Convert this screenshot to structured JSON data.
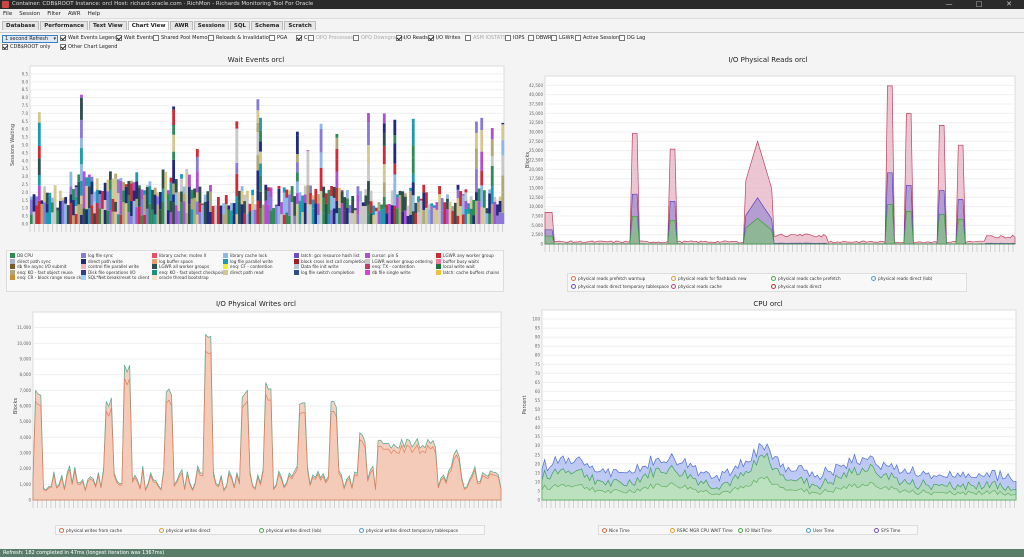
{
  "window": {
    "title": "Container: CDB$ROOT  Instance: orcl  Host: richard.oracle.com  ·  RichMon - Richards Monitoring Tool For Oracle",
    "buttons": [
      "—",
      "□",
      "✕"
    ]
  },
  "menu": [
    "File",
    "Session",
    "Filter",
    "AWR",
    "Help"
  ],
  "tabs": [
    {
      "label": "Database",
      "active": false
    },
    {
      "label": "Performance",
      "active": false
    },
    {
      "label": "Text View",
      "active": false
    },
    {
      "label": "Chart View",
      "active": true
    },
    {
      "label": "AWR",
      "active": false
    },
    {
      "label": "Sessions",
      "active": false
    },
    {
      "label": "SQL",
      "active": false
    },
    {
      "label": "Schema",
      "active": false
    },
    {
      "label": "Scratch",
      "active": false
    }
  ],
  "controls": {
    "refresh": "1 second Refresh",
    "left_checks": [
      {
        "label": "Wait Events Legend",
        "checked": true
      },
      {
        "label": "CDB$ROOT only",
        "checked": true
      },
      {
        "label": "Other Chart Legend",
        "checked": true
      }
    ],
    "chart_checks": [
      {
        "label": "Wait Events",
        "checked": true,
        "disabled": false
      },
      {
        "label": "Shared Pool Memory",
        "checked": false,
        "disabled": false
      },
      {
        "label": "Reloads & Invalidations",
        "checked": false,
        "disabled": false
      },
      {
        "label": "PGA",
        "checked": false,
        "disabled": false
      },
      {
        "label": "CPU",
        "checked": true,
        "disabled": false
      },
      {
        "label": "OPQ Processes",
        "checked": false,
        "disabled": true
      },
      {
        "label": "OPQ Downgrades",
        "checked": false,
        "disabled": true
      },
      {
        "label": "I/O Reads",
        "checked": true,
        "disabled": false
      },
      {
        "label": "I/O Writes",
        "checked": true,
        "disabled": false
      },
      {
        "label": "ASM IOSTATS",
        "checked": false,
        "disabled": true
      },
      {
        "label": "IOPS",
        "checked": false,
        "disabled": false
      },
      {
        "label": "DBWR",
        "checked": false,
        "disabled": false
      },
      {
        "label": "LGWR",
        "checked": false,
        "disabled": false
      },
      {
        "label": "Active Sessions",
        "checked": false,
        "disabled": false
      },
      {
        "label": "DG Lag",
        "checked": false,
        "disabled": false
      }
    ]
  },
  "status": "Refresh: 182 completed in 47ms (longest iteration was 1367ms)",
  "charts": {
    "wait": {
      "title": "Wait Events orcl",
      "ylabel": "Sessions Waiting",
      "ylim": [
        0,
        10
      ],
      "yticks": [
        "0.0",
        "0.5",
        "1.0",
        "1.5",
        "2.0",
        "2.5",
        "3.0",
        "3.5",
        "4.0",
        "4.5",
        "5.0",
        "5.5",
        "6.0",
        "6.5",
        "7.0",
        "7.5",
        "8.0",
        "8.5",
        "9.0",
        "9.5"
      ],
      "legend": [
        {
          "label": "DB CPU",
          "color": "#2e8b57"
        },
        {
          "label": "log file sync",
          "color": "#8a7ad8"
        },
        {
          "label": "library cache: mutex X",
          "color": "#e0526b"
        },
        {
          "label": "library cache lock",
          "color": "#8fb8e8"
        },
        {
          "label": "latch: gcs resource hash list",
          "color": "#6d4fc4"
        },
        {
          "label": "cursor: pin S",
          "color": "#b04fd4"
        },
        {
          "label": "LGWR any worker group",
          "color": "#d02a36"
        },
        {
          "label": "direct path sync",
          "color": "#a8b4c4"
        },
        {
          "label": "direct path write",
          "color": "#222a7a"
        },
        {
          "label": "log buffer space",
          "color": "#e8a070"
        },
        {
          "label": "log file parallel write",
          "color": "#1e9ab0"
        },
        {
          "label": "block cross inst call completion",
          "color": "#9a1f2a"
        },
        {
          "label": "LGWR worker group ordering",
          "color": "#c8c8c8"
        },
        {
          "label": "buffer busy waits",
          "color": "#f07a9a"
        },
        {
          "label": "db file async I/O submit",
          "color": "#7a5a2a"
        },
        {
          "label": "control file parallel write",
          "color": "#f2b0c0"
        },
        {
          "label": "LGWR all worker groups",
          "color": "#2f4f4f"
        },
        {
          "label": "enq: CF - contention",
          "color": "#f0f03a"
        },
        {
          "label": "Data file init write",
          "color": "#b8c8d8"
        },
        {
          "label": "enq: TX - contention",
          "color": "#c03a6a"
        },
        {
          "label": "local write wait",
          "color": "#1f6f3f"
        },
        {
          "label": "enq: KO - fast object reuse",
          "color": "#b0a878"
        },
        {
          "label": "Disk file operations I/O",
          "color": "#3a3a8a"
        },
        {
          "label": "enq: KO - fast object checkpoint",
          "color": "#1f8f7f"
        },
        {
          "label": "direct path read",
          "color": "#d4c890"
        },
        {
          "label": "log file switch completion",
          "color": "#30508a"
        },
        {
          "label": "db file single write",
          "color": "#e040e0"
        },
        {
          "label": "latch: cache buffers chains",
          "color": "#f0c040"
        },
        {
          "label": "enq: CR - block range reuse ckpt",
          "color": "#c89030"
        },
        {
          "label": "SQL*Net break/reset to client",
          "color": "#a0d0f8"
        },
        {
          "label": "oracle thread bootstrap",
          "color": "#f4e0c8"
        }
      ]
    },
    "reads": {
      "title": "I/O Physical Reads orcl",
      "ylabel": "Blocks",
      "ylim": [
        0,
        42500
      ],
      "yticks": [
        "0",
        "2,500",
        "5,000",
        "7,500",
        "10,000",
        "12,500",
        "15,000",
        "17,500",
        "20,000",
        "22,500",
        "25,000",
        "27,500",
        "30,000",
        "32,500",
        "35,000",
        "37,500",
        "40,000",
        "42,500"
      ],
      "legend": [
        {
          "label": "physical reads prefetch warmup",
          "color": "#e07040"
        },
        {
          "label": "physical reads for flashback new",
          "color": "#e0a030"
        },
        {
          "label": "physical reads cache prefetch",
          "color": "#50a850"
        },
        {
          "label": "physical reads direct (lob)",
          "color": "#50a0d0"
        },
        {
          "label": "physical reads direct temporary tablespace",
          "color": "#7050c0"
        },
        {
          "label": "physical reads cache",
          "color": "#c04090"
        },
        {
          "label": "physical reads direct",
          "color": "#c03040"
        }
      ]
    },
    "writes": {
      "title": "I/O Physical Writes orcl",
      "ylabel": "Blocks",
      "ylim": [
        0,
        11000
      ],
      "yticks": [
        "0",
        "1,000",
        "2,000",
        "3,000",
        "4,000",
        "5,000",
        "6,000",
        "7,000",
        "8,000",
        "9,000",
        "10,000",
        "11,000"
      ],
      "legend": [
        {
          "label": "physical writes from cache",
          "color": "#e07040"
        },
        {
          "label": "physical writes direct",
          "color": "#e0a030"
        },
        {
          "label": "physical writes direct (lob)",
          "color": "#50a850"
        },
        {
          "label": "physical writes direct temporary tablespace",
          "color": "#50a0d0"
        }
      ]
    },
    "cpu": {
      "title": "CPU orcl",
      "ylabel": "Percent",
      "ylim": [
        0,
        100
      ],
      "yticks": [
        "0",
        "5",
        "10",
        "15",
        "20",
        "25",
        "30",
        "35",
        "40",
        "45",
        "50",
        "55",
        "60",
        "65",
        "70",
        "75",
        "80",
        "85",
        "90",
        "95",
        "100"
      ],
      "legend": [
        {
          "label": "Nice Time",
          "color": "#e07040"
        },
        {
          "label": "RSRC MGR CPU WAIT Time",
          "color": "#e0a030"
        },
        {
          "label": "IO Wait Time",
          "color": "#50a850"
        },
        {
          "label": "User Time",
          "color": "#50a0d0"
        },
        {
          "label": "SYS Time",
          "color": "#7050c0"
        }
      ]
    }
  }
}
